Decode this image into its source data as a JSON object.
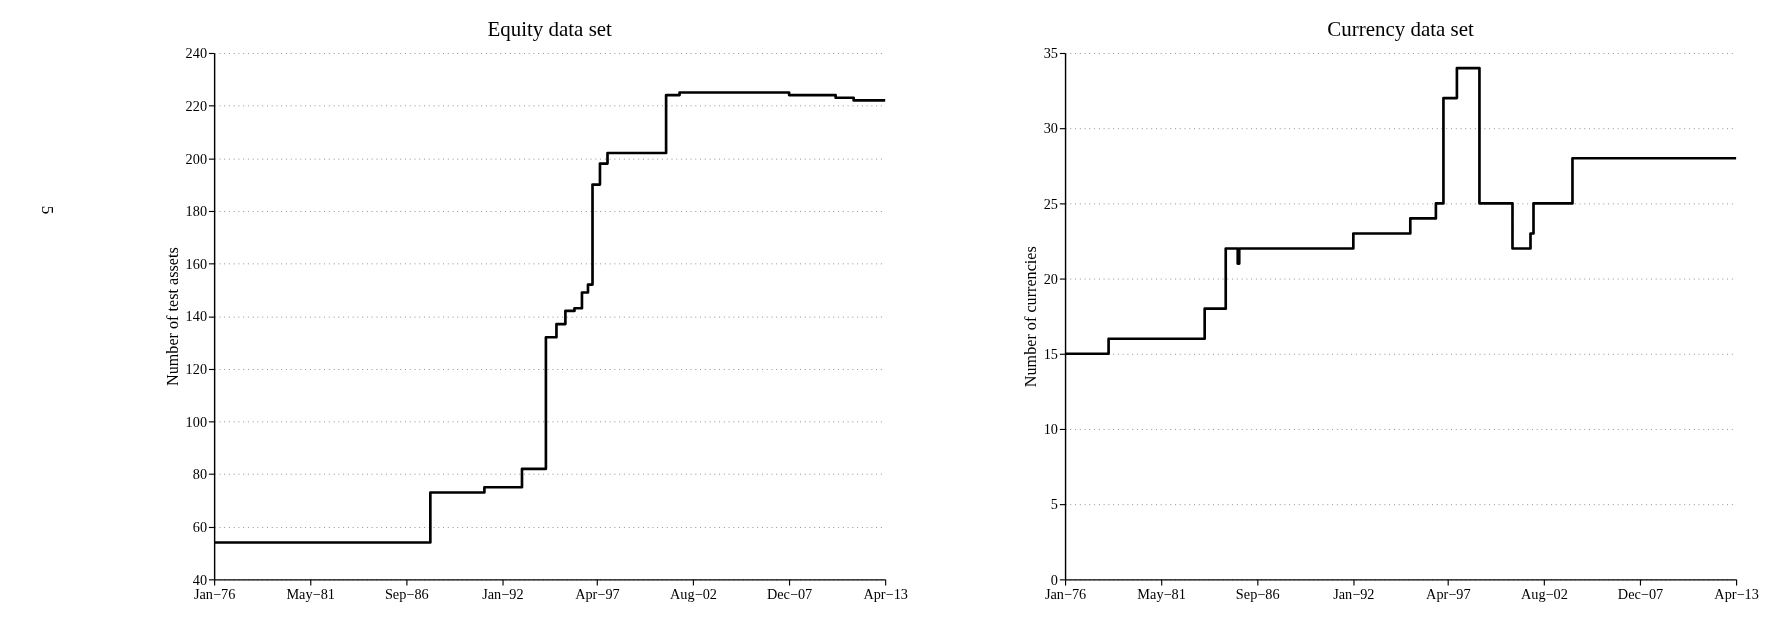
{
  "chart_data": [
    {
      "type": "step",
      "title": "Equity data set",
      "ylabel": "Number of test assets",
      "x": [
        "1976-01",
        "1988-01",
        "1991-01",
        "1993-02",
        "1994-06",
        "1995-01",
        "1995-07",
        "1996-01",
        "1996-06",
        "1996-10",
        "1997-01",
        "1997-06",
        "1997-11",
        "2001-02",
        "2001-11",
        "2007-12",
        "2010-07",
        "2011-07",
        "2013-04"
      ],
      "series": [
        {
          "color": "#000000",
          "values": [
            54,
            73,
            75,
            82,
            132,
            137,
            142,
            143,
            149,
            152,
            190,
            198,
            202,
            224,
            225,
            224,
            223,
            222,
            222
          ]
        }
      ],
      "xlim": [
        "1976-01",
        "2013-04"
      ],
      "xticks": [
        {
          "value": "1976-01",
          "label": "Jan−76"
        },
        {
          "value": "1981-05",
          "label": "May−81"
        },
        {
          "value": "1986-09",
          "label": "Sep−86"
        },
        {
          "value": "1992-01",
          "label": "Jan−92"
        },
        {
          "value": "1997-04",
          "label": "Apr−97"
        },
        {
          "value": "2002-08",
          "label": "Aug−02"
        },
        {
          "value": "2007-12",
          "label": "Dec−07"
        },
        {
          "value": "2013-04",
          "label": "Apr−13"
        }
      ],
      "ylim": [
        40,
        240
      ],
      "yticks": [
        40,
        60,
        80,
        100,
        120,
        140,
        160,
        180,
        200,
        220,
        240
      ],
      "grid": "y",
      "line_style": "solid",
      "annotations": [
        "5"
      ]
    },
    {
      "type": "step",
      "title": "Currency data set",
      "ylabel": "Number of currencies",
      "x": [
        "1976-01",
        "1978-06",
        "1983-10",
        "1984-12",
        "1985-08",
        "1985-09",
        "1992-01",
        "1995-03",
        "1996-08",
        "1997-01",
        "1997-10",
        "1999-01",
        "2000-11",
        "2001-02",
        "2001-11",
        "2002-01",
        "2002-03",
        "2004-03",
        "2013-04"
      ],
      "series": [
        {
          "color": "#000000",
          "values": [
            15,
            16,
            18,
            22,
            21,
            22,
            23,
            24,
            25,
            32,
            34,
            25,
            22,
            22,
            23,
            25,
            25,
            28,
            28
          ]
        }
      ],
      "xlim": [
        "1976-01",
        "2013-04"
      ],
      "xticks": [
        {
          "value": "1976-01",
          "label": "Jan−76"
        },
        {
          "value": "1981-05",
          "label": "May−81"
        },
        {
          "value": "1986-09",
          "label": "Sep−86"
        },
        {
          "value": "1992-01",
          "label": "Jan−92"
        },
        {
          "value": "1997-04",
          "label": "Apr−97"
        },
        {
          "value": "2002-08",
          "label": "Aug−02"
        },
        {
          "value": "2007-12",
          "label": "Dec−07"
        },
        {
          "value": "2013-04",
          "label": "Apr−13"
        }
      ],
      "ylim": [
        0,
        35
      ],
      "yticks": [
        0,
        5,
        10,
        15,
        20,
        25,
        30,
        35
      ],
      "grid": "y",
      "line_style": "solid"
    }
  ]
}
